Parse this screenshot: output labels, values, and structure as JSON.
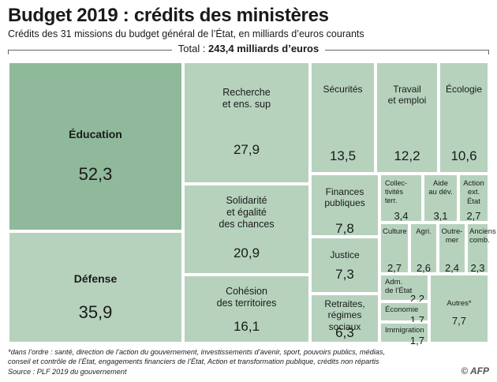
{
  "title": "Budget 2019 : crédits des ministères",
  "subtitle": "Crédits des 31 missions du budget général de l’État, en milliards d’euros courants",
  "total_prefix": "Total : ",
  "total_value": "243,4 milliards d’euros",
  "footnote_line1": "*dans l’ordre : santé, direction de l’action du gouvernement, investissements d’avenir, sport, pouvoirs publics, médias,",
  "footnote_line2": "conseil et contrôle de l’État, engagements financiers de l’État, Action et transformation publique, crédits non répartis",
  "source": "Source : PLF 2019 du gouvernement",
  "credit": "© AFP",
  "colors": {
    "education": "#8fb99a",
    "default": "#b6d2bd",
    "border": "#ffffff"
  },
  "chart_data": {
    "type": "treemap",
    "title": "Budget 2019 : crédits des ministères",
    "unit": "milliards d’euros",
    "total": 243.4,
    "items": [
      {
        "label": "Éducation",
        "value": 52.3,
        "display": "52,3"
      },
      {
        "label": "Défense",
        "value": 35.9,
        "display": "35,9"
      },
      {
        "label": "Recherche et ens. sup",
        "value": 27.9,
        "display": "27,9"
      },
      {
        "label": "Solidarité et égalité des chances",
        "value": 20.9,
        "display": "20,9"
      },
      {
        "label": "Cohésion des territoires",
        "value": 16.1,
        "display": "16,1"
      },
      {
        "label": "Sécurités",
        "value": 13.5,
        "display": "13,5"
      },
      {
        "label": "Travail et emploi",
        "value": 12.2,
        "display": "12,2"
      },
      {
        "label": "Écologie",
        "value": 10.6,
        "display": "10,6"
      },
      {
        "label": "Finances publiques",
        "value": 7.8,
        "display": "7,8"
      },
      {
        "label": "Justice",
        "value": 7.3,
        "display": "7,3"
      },
      {
        "label": "Retraites, régimes sociaux",
        "value": 6.3,
        "display": "6,3"
      },
      {
        "label": "Collec- tivités terr.",
        "value": 3.4,
        "display": "3,4"
      },
      {
        "label": "Aide au dév.",
        "value": 3.1,
        "display": "3,1"
      },
      {
        "label": "Action ext. État",
        "value": 2.7,
        "display": "2,7"
      },
      {
        "label": "Culture",
        "value": 2.7,
        "display": "2,7"
      },
      {
        "label": "Agri.",
        "value": 2.6,
        "display": "2,6"
      },
      {
        "label": "Outre- mer",
        "value": 2.4,
        "display": "2,4"
      },
      {
        "label": "Anciens comb.",
        "value": 2.3,
        "display": "2,3"
      },
      {
        "label": "Adm. de l’État",
        "value": 2.2,
        "display": "2,2"
      },
      {
        "label": "Économie",
        "value": 1.7,
        "display": "1,7"
      },
      {
        "label": "Immigration",
        "value": 1.7,
        "display": "1,7"
      },
      {
        "label": "Autres*",
        "value": 7.7,
        "display": "7,7"
      }
    ]
  }
}
